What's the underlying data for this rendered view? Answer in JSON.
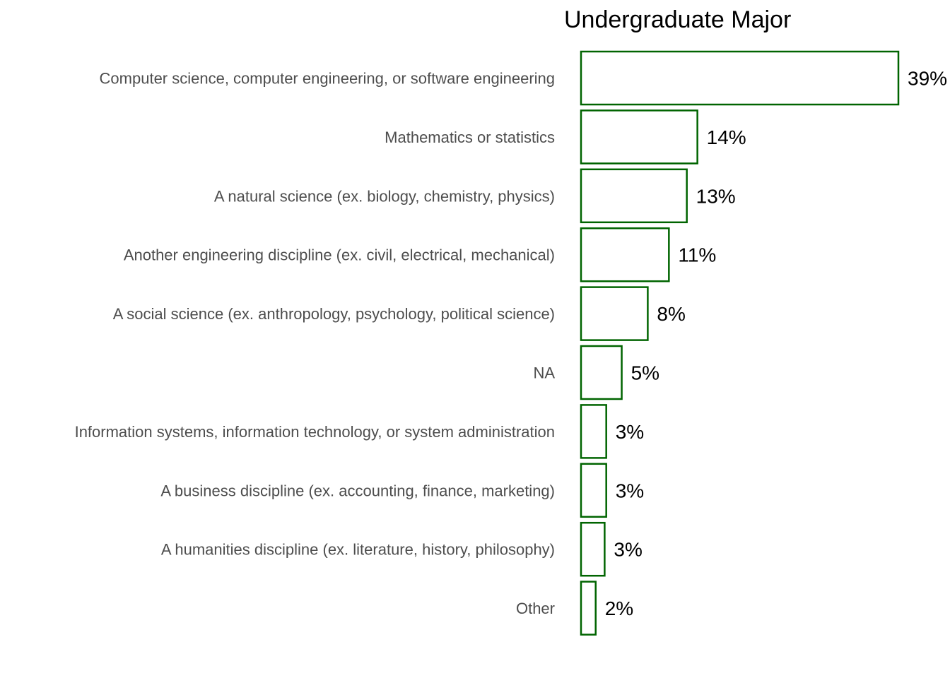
{
  "chart_data": {
    "type": "bar",
    "orientation": "horizontal",
    "title": "Undergraduate Major",
    "xlabel": "",
    "ylabel": "",
    "grid": false,
    "legend": "none",
    "xlim": [
      0,
      39
    ],
    "categories": [
      "Computer science, computer engineering, or software engineering",
      "Mathematics or statistics",
      "A natural science (ex. biology, chemistry, physics)",
      "Another engineering discipline (ex. civil, electrical, mechanical)",
      "A social science (ex. anthropology, psychology, political science)",
      "NA",
      "Information systems, information technology, or system administration",
      "A business discipline (ex. accounting, finance, marketing)",
      "A humanities discipline (ex. literature, history, philosophy)",
      "Other"
    ],
    "values": [
      39,
      14.3,
      13,
      10.8,
      8.2,
      5,
      3.1,
      3.1,
      2.9,
      1.8
    ],
    "data_labels": [
      "39%",
      "14%",
      "13%",
      "11%",
      "8%",
      "5%",
      "3%",
      "3%",
      "3%",
      "2%"
    ],
    "colors": {
      "bar_fill": "#ffffff",
      "bar_stroke": "#006400",
      "category_text": "#4d4d4d",
      "value_text": "#000000"
    }
  }
}
